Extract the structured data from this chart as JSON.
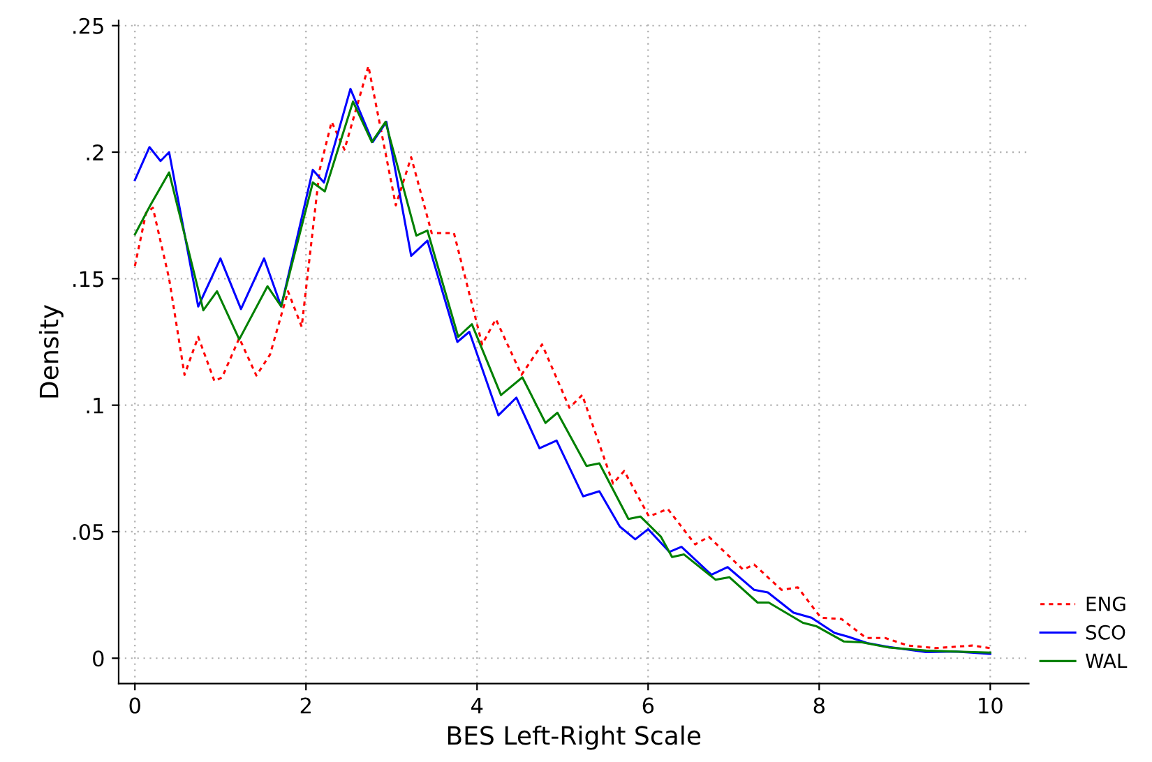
{
  "chart_data": {
    "type": "line",
    "xlabel": "BES Left-Right Scale",
    "ylabel": "Density",
    "xlim": [
      -0.19,
      10.45
    ],
    "ylim": [
      -0.01,
      0.252
    ],
    "xticks": [
      0,
      2,
      4,
      6,
      8,
      10
    ],
    "yticks": [
      {
        "value": 0,
        "label": "0"
      },
      {
        "value": 0.05,
        "label": ".05"
      },
      {
        "value": 0.1,
        "label": ".1"
      },
      {
        "value": 0.15,
        "label": ".15"
      },
      {
        "value": 0.2,
        "label": ".2"
      },
      {
        "value": 0.25,
        "label": ".25"
      }
    ],
    "grid": true,
    "legend": "right",
    "marker": "none",
    "series": [
      {
        "name": "ENG",
        "color": "#ff0000",
        "line_style": "dashed",
        "x": [
          0,
          0.13,
          0.21,
          0.4,
          0.58,
          0.74,
          0.93,
          1.02,
          1.22,
          1.42,
          1.58,
          1.79,
          1.95,
          2.16,
          2.3,
          2.45,
          2.73,
          3.05,
          3.23,
          3.47,
          3.73,
          4.06,
          4.22,
          4.52,
          4.76,
          5.08,
          5.23,
          5.59,
          5.72,
          6.01,
          6.23,
          6.55,
          6.71,
          7.11,
          7.24,
          7.56,
          7.75,
          8.02,
          8.26,
          8.55,
          8.77,
          9.04,
          9.36,
          9.79,
          10
        ],
        "values": [
          0.155,
          0.176,
          0.178,
          0.15,
          0.112,
          0.127,
          0.1095,
          0.111,
          0.1265,
          0.1117,
          0.12,
          0.145,
          0.131,
          0.193,
          0.212,
          0.201,
          0.234,
          0.179,
          0.198,
          0.168,
          0.168,
          0.124,
          0.134,
          0.112,
          0.124,
          0.099,
          0.104,
          0.069,
          0.074,
          0.056,
          0.059,
          0.045,
          0.048,
          0.035,
          0.037,
          0.027,
          0.028,
          0.016,
          0.0155,
          0.008,
          0.008,
          0.005,
          0.004,
          0.005,
          0.004
        ]
      },
      {
        "name": "SCO",
        "color": "#0000ff",
        "line_style": "solid",
        "x": [
          0,
          0.17,
          0.3,
          0.4,
          0.74,
          1.0,
          1.24,
          1.51,
          1.71,
          2.08,
          2.21,
          2.52,
          2.78,
          2.94,
          3.23,
          3.42,
          3.77,
          3.91,
          4.25,
          4.46,
          4.73,
          4.93,
          5.24,
          5.43,
          5.67,
          5.85,
          6.0,
          6.25,
          6.39,
          6.74,
          6.93,
          7.24,
          7.4,
          7.7,
          7.91,
          8.18,
          8.34,
          8.56,
          8.82,
          9.25,
          9.6,
          10
        ],
        "values": [
          0.189,
          0.202,
          0.1965,
          0.2,
          0.139,
          0.158,
          0.138,
          0.158,
          0.139,
          0.193,
          0.188,
          0.225,
          0.204,
          0.212,
          0.159,
          0.165,
          0.125,
          0.129,
          0.096,
          0.103,
          0.083,
          0.086,
          0.064,
          0.066,
          0.052,
          0.047,
          0.051,
          0.042,
          0.044,
          0.033,
          0.036,
          0.027,
          0.026,
          0.018,
          0.016,
          0.01,
          0.0085,
          0.006,
          0.0044,
          0.0024,
          0.0026,
          0.0017
        ]
      },
      {
        "name": "WAL",
        "color": "#008000",
        "line_style": "solid",
        "x": [
          0,
          0.18,
          0.4,
          0.8,
          0.96,
          1.22,
          1.55,
          1.71,
          2.08,
          2.22,
          2.55,
          2.77,
          2.93,
          3.29,
          3.42,
          3.78,
          3.94,
          4.28,
          4.53,
          4.8,
          4.94,
          5.28,
          5.43,
          5.77,
          5.91,
          6.15,
          6.28,
          6.42,
          6.79,
          6.95,
          7.28,
          7.41,
          7.81,
          7.97,
          8.29,
          8.5,
          8.82,
          9.25,
          9.6,
          10
        ],
        "values": [
          0.1675,
          0.179,
          0.192,
          0.1375,
          0.145,
          0.126,
          0.147,
          0.139,
          0.188,
          0.1845,
          0.22,
          0.204,
          0.212,
          0.167,
          0.169,
          0.127,
          0.132,
          0.104,
          0.111,
          0.093,
          0.097,
          0.076,
          0.077,
          0.055,
          0.056,
          0.048,
          0.04,
          0.041,
          0.031,
          0.032,
          0.022,
          0.022,
          0.014,
          0.0126,
          0.0066,
          0.0063,
          0.0042,
          0.003,
          0.0026,
          0.0022
        ]
      }
    ]
  }
}
